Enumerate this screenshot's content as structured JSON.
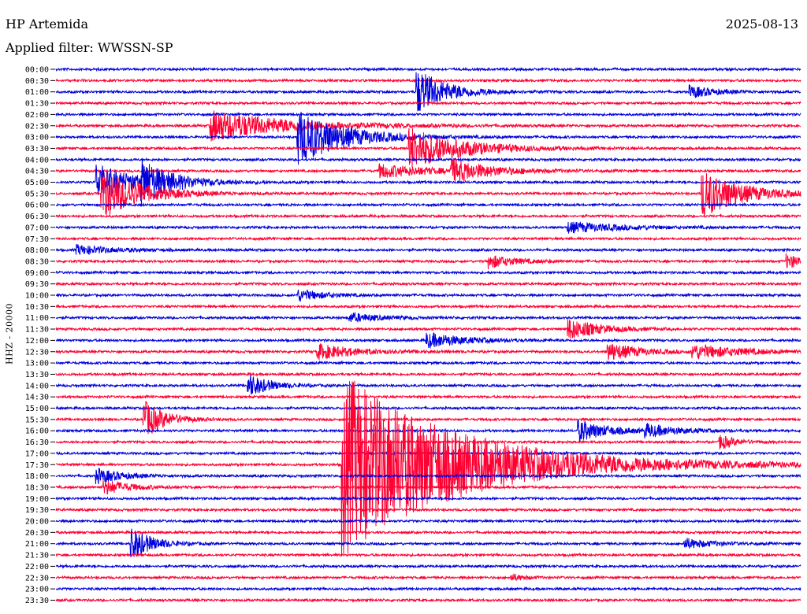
{
  "header": {
    "station": "HP Artemida",
    "date": "2025-08-13",
    "filter": "Applied filter: WWSSN-SP"
  },
  "channel_label": "HHZ - 20000",
  "colors": {
    "trace_a": "#0000dd",
    "trace_b": "#ff0033",
    "axis": "#000000"
  },
  "chart_data": {
    "type": "line",
    "title": "",
    "ylabel": "HHZ - 20000",
    "hours_per_row": 0.5,
    "rows": [
      "00:00",
      "00:30",
      "01:00",
      "01:30",
      "02:00",
      "02:30",
      "03:00",
      "03:30",
      "04:00",
      "04:30",
      "05:00",
      "05:30",
      "06:00",
      "06:30",
      "07:00",
      "07:30",
      "08:00",
      "08:30",
      "09:00",
      "09:30",
      "10:00",
      "10:30",
      "11:00",
      "11:30",
      "12:00",
      "12:30",
      "13:00",
      "13:30",
      "14:00",
      "14:30",
      "15:00",
      "15:30",
      "16:00",
      "16:30",
      "17:00",
      "17:30",
      "18:00",
      "18:30",
      "19:00",
      "19:30",
      "20:00",
      "20:30",
      "21:00",
      "21:30",
      "22:00",
      "22:30",
      "23:00",
      "23:30"
    ],
    "trace_colors": [
      "#0000dd",
      "#ff0033"
    ],
    "events": [
      {
        "row": "01:00",
        "minute": 14.5,
        "amp": 30,
        "dur": 1.2
      },
      {
        "row": "01:00",
        "minute": 25.5,
        "amp": 8,
        "dur": 1.0
      },
      {
        "row": "02:30",
        "minute": 6.2,
        "amp": 20,
        "dur": 3.0
      },
      {
        "row": "03:00",
        "minute": 9.7,
        "amp": 36,
        "dur": 1.8
      },
      {
        "row": "03:30",
        "minute": 14.2,
        "amp": 28,
        "dur": 2.0
      },
      {
        "row": "04:30",
        "minute": 13.0,
        "amp": 9,
        "dur": 2.0
      },
      {
        "row": "04:30",
        "minute": 15.9,
        "amp": 14,
        "dur": 1.5
      },
      {
        "row": "05:00",
        "minute": 1.6,
        "amp": 24,
        "dur": 1.5
      },
      {
        "row": "05:00",
        "minute": 3.4,
        "amp": 24,
        "dur": 1.2
      },
      {
        "row": "05:30",
        "minute": 1.8,
        "amp": 34,
        "dur": 1.5
      },
      {
        "row": "05:30",
        "minute": 26.0,
        "amp": 32,
        "dur": 1.5
      },
      {
        "row": "07:00",
        "minute": 20.6,
        "amp": 7,
        "dur": 2.0
      },
      {
        "row": "08:00",
        "minute": 0.8,
        "amp": 6,
        "dur": 1.5
      },
      {
        "row": "08:30",
        "minute": 17.4,
        "amp": 9,
        "dur": 1.0
      },
      {
        "row": "08:30",
        "minute": 29.4,
        "amp": 9,
        "dur": 1.0
      },
      {
        "row": "10:00",
        "minute": 9.7,
        "amp": 8,
        "dur": 1.0
      },
      {
        "row": "11:00",
        "minute": 11.8,
        "amp": 6,
        "dur": 1.2
      },
      {
        "row": "11:30",
        "minute": 20.6,
        "amp": 14,
        "dur": 1.2
      },
      {
        "row": "12:00",
        "minute": 14.9,
        "amp": 10,
        "dur": 1.5
      },
      {
        "row": "12:30",
        "minute": 10.5,
        "amp": 10,
        "dur": 1.5
      },
      {
        "row": "12:30",
        "minute": 22.2,
        "amp": 12,
        "dur": 1.2
      },
      {
        "row": "12:30",
        "minute": 25.6,
        "amp": 9,
        "dur": 2.0
      },
      {
        "row": "14:00",
        "minute": 7.7,
        "amp": 16,
        "dur": 0.8
      },
      {
        "row": "15:30",
        "minute": 3.5,
        "amp": 26,
        "dur": 0.8
      },
      {
        "row": "16:00",
        "minute": 21.0,
        "amp": 14,
        "dur": 1.2
      },
      {
        "row": "16:00",
        "minute": 23.7,
        "amp": 8,
        "dur": 1.2
      },
      {
        "row": "16:30",
        "minute": 26.7,
        "amp": 10,
        "dur": 0.6
      },
      {
        "row": "17:30",
        "minute": 11.5,
        "amp": 118,
        "dur": 4.5
      },
      {
        "row": "18:00",
        "minute": 1.6,
        "amp": 10,
        "dur": 1.0
      },
      {
        "row": "18:30",
        "minute": 1.9,
        "amp": 10,
        "dur": 1.0
      },
      {
        "row": "21:00",
        "minute": 3.0,
        "amp": 22,
        "dur": 0.8
      },
      {
        "row": "21:00",
        "minute": 25.3,
        "amp": 7,
        "dur": 1.0
      },
      {
        "row": "22:30",
        "minute": 18.3,
        "amp": 5,
        "dur": 0.5
      }
    ]
  }
}
